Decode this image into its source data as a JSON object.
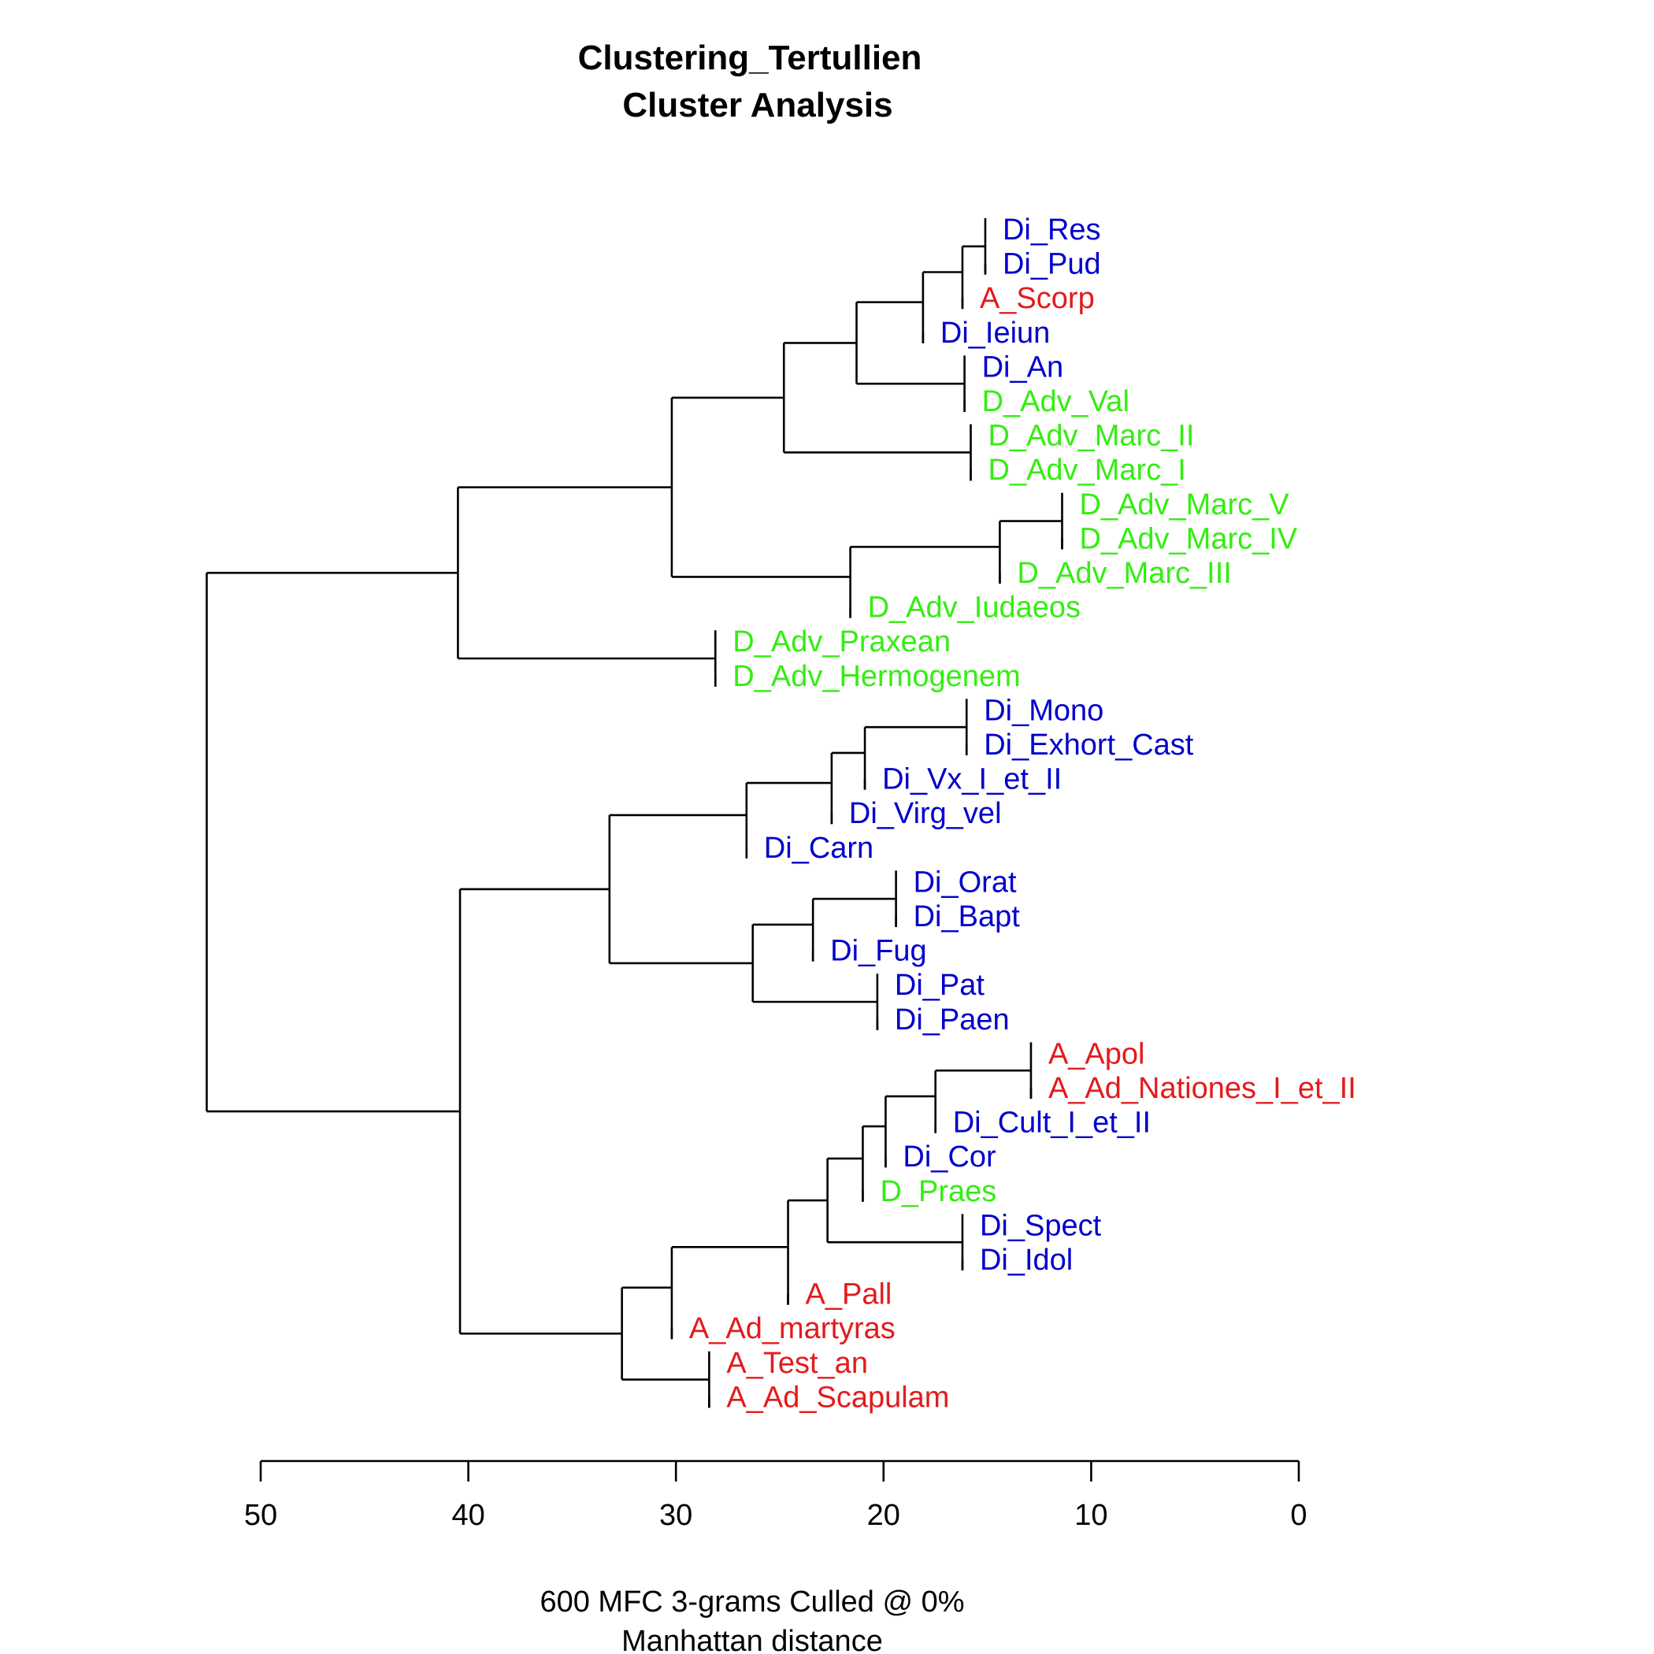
{
  "colors": {
    "A": "#e41a1c",
    "Di": "#0000cc",
    "D": "#33ee11",
    "line": "#000000"
  },
  "chart_data": {
    "type": "dendrogram",
    "title": "Clustering_Tertullien",
    "subtitle": "Cluster Analysis",
    "xlabel": "600 MFC 3-grams Culled @ 0%",
    "xlabel2": "Manhattan distance",
    "xlim": [
      50,
      0
    ],
    "xticks": [
      50,
      40,
      30,
      20,
      10,
      0
    ],
    "leaves": [
      {
        "label": "Di_Res",
        "group": "Di"
      },
      {
        "label": "Di_Pud",
        "group": "Di"
      },
      {
        "label": "A_Scorp",
        "group": "A"
      },
      {
        "label": "Di_Ieiun",
        "group": "Di"
      },
      {
        "label": "Di_An",
        "group": "Di"
      },
      {
        "label": "D_Adv_Val",
        "group": "D"
      },
      {
        "label": "D_Adv_Marc_II",
        "group": "D"
      },
      {
        "label": "D_Adv_Marc_I",
        "group": "D"
      },
      {
        "label": "D_Adv_Marc_V",
        "group": "D"
      },
      {
        "label": "D_Adv_Marc_IV",
        "group": "D"
      },
      {
        "label": "D_Adv_Marc_III",
        "group": "D"
      },
      {
        "label": "D_Adv_Iudaeos",
        "group": "D"
      },
      {
        "label": "D_Adv_Praxean",
        "group": "D"
      },
      {
        "label": "D_Adv_Hermogenem",
        "group": "D"
      },
      {
        "label": "Di_Mono",
        "group": "Di"
      },
      {
        "label": "Di_Exhort_Cast",
        "group": "Di"
      },
      {
        "label": "Di_Vx_I_et_II",
        "group": "Di"
      },
      {
        "label": "Di_Virg_vel",
        "group": "Di"
      },
      {
        "label": "Di_Carn",
        "group": "Di"
      },
      {
        "label": "Di_Orat",
        "group": "Di"
      },
      {
        "label": "Di_Bapt",
        "group": "Di"
      },
      {
        "label": "Di_Fug",
        "group": "Di"
      },
      {
        "label": "Di_Pat",
        "group": "Di"
      },
      {
        "label": "Di_Paen",
        "group": "Di"
      },
      {
        "label": "A_Apol",
        "group": "A"
      },
      {
        "label": "A_Ad_Nationes_I_et_II",
        "group": "A"
      },
      {
        "label": "Di_Cult_I_et_II",
        "group": "Di"
      },
      {
        "label": "Di_Cor",
        "group": "Di"
      },
      {
        "label": "D_Praes",
        "group": "D"
      },
      {
        "label": "Di_Spect",
        "group": "Di"
      },
      {
        "label": "Di_Idol",
        "group": "Di"
      },
      {
        "label": "A_Pall",
        "group": "A"
      },
      {
        "label": "A_Ad_martyras",
        "group": "A"
      },
      {
        "label": "A_Test_an",
        "group": "A"
      },
      {
        "label": "A_Ad_Scapulam",
        "group": "A"
      }
    ],
    "merges": [
      {
        "id": "m1",
        "children": [
          0,
          1
        ],
        "height": 15.1
      },
      {
        "id": "m2",
        "children": [
          "m1",
          2
        ],
        "height": 16.2
      },
      {
        "id": "m3",
        "children": [
          "m2",
          3
        ],
        "height": 18.1
      },
      {
        "id": "m4",
        "children": [
          4,
          5
        ],
        "height": 16.1
      },
      {
        "id": "m5",
        "children": [
          "m3",
          "m4"
        ],
        "height": 21.3
      },
      {
        "id": "m6",
        "children": [
          6,
          7
        ],
        "height": 15.8
      },
      {
        "id": "m7",
        "children": [
          "m5",
          "m6"
        ],
        "height": 24.8
      },
      {
        "id": "m8",
        "children": [
          8,
          9
        ],
        "height": 11.4
      },
      {
        "id": "m9",
        "children": [
          "m8",
          10
        ],
        "height": 14.4
      },
      {
        "id": "m10",
        "children": [
          "m9",
          11
        ],
        "height": 21.6
      },
      {
        "id": "m11",
        "children": [
          "m7",
          "m10"
        ],
        "height": 30.2
      },
      {
        "id": "m12",
        "children": [
          12,
          13
        ],
        "height": 28.1
      },
      {
        "id": "m13",
        "children": [
          "m11",
          "m12"
        ],
        "height": 40.5
      },
      {
        "id": "m14",
        "children": [
          14,
          15
        ],
        "height": 16.0
      },
      {
        "id": "m15",
        "children": [
          "m14",
          16
        ],
        "height": 20.9
      },
      {
        "id": "m16",
        "children": [
          "m15",
          17
        ],
        "height": 22.5
      },
      {
        "id": "m17",
        "children": [
          "m16",
          18
        ],
        "height": 26.6
      },
      {
        "id": "m18",
        "children": [
          19,
          20
        ],
        "height": 19.4
      },
      {
        "id": "m19",
        "children": [
          "m18",
          21
        ],
        "height": 23.4
      },
      {
        "id": "m20",
        "children": [
          22,
          23
        ],
        "height": 20.3
      },
      {
        "id": "m21",
        "children": [
          "m19",
          "m20"
        ],
        "height": 26.3
      },
      {
        "id": "m22",
        "children": [
          "m17",
          "m21"
        ],
        "height": 33.2
      },
      {
        "id": "m23",
        "children": [
          24,
          25
        ],
        "height": 12.9
      },
      {
        "id": "m24",
        "children": [
          "m23",
          26
        ],
        "height": 17.5
      },
      {
        "id": "m25",
        "children": [
          "m24",
          27
        ],
        "height": 19.9
      },
      {
        "id": "m26",
        "children": [
          "m25",
          28
        ],
        "height": 21.0
      },
      {
        "id": "m27",
        "children": [
          29,
          30
        ],
        "height": 16.2
      },
      {
        "id": "m28",
        "children": [
          "m26",
          "m27"
        ],
        "height": 22.7
      },
      {
        "id": "m29",
        "children": [
          "m28",
          31
        ],
        "height": 24.6
      },
      {
        "id": "m30",
        "children": [
          "m29",
          32
        ],
        "height": 30.2
      },
      {
        "id": "m31",
        "children": [
          33,
          34
        ],
        "height": 28.4
      },
      {
        "id": "m32",
        "children": [
          "m30",
          "m31"
        ],
        "height": 32.6
      },
      {
        "id": "m33",
        "children": [
          "m22",
          "m32"
        ],
        "height": 40.4
      },
      {
        "id": "m34",
        "children": [
          "m13",
          "m33"
        ],
        "height": 52.6
      }
    ]
  }
}
